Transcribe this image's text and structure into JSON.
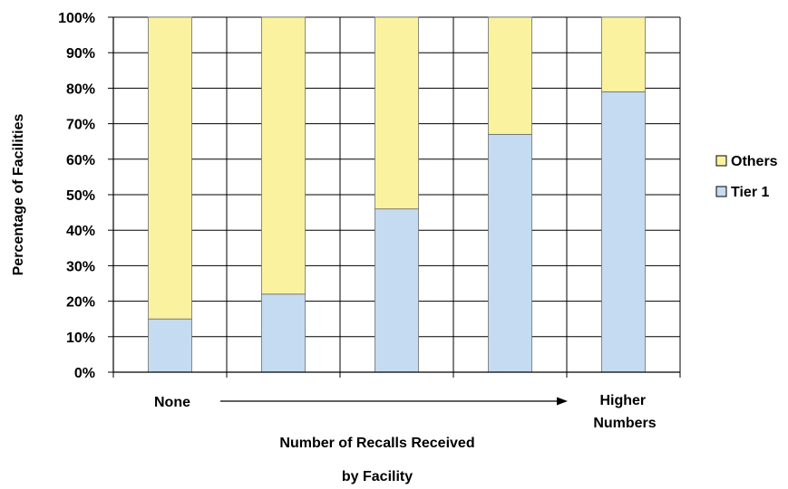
{
  "chart_data": {
    "type": "bar",
    "stacked": true,
    "percent": true,
    "categories": [
      "None",
      "",
      "",
      "",
      "Higher Numbers"
    ],
    "series": [
      {
        "name": "Tier 1",
        "values": [
          15,
          22,
          46,
          67,
          79
        ],
        "color": "#c4dbf1"
      },
      {
        "name": "Others",
        "values": [
          85,
          78,
          54,
          33,
          21
        ],
        "color": "#fbf29f"
      }
    ],
    "ylabel": "Percentage of Facilities",
    "xlabel_lines": [
      "Number of Recalls Received",
      "by Facility"
    ],
    "y_ticks": [
      "0%",
      "10%",
      "20%",
      "30%",
      "40%",
      "50%",
      "60%",
      "70%",
      "80%",
      "90%",
      "100%"
    ],
    "ylim": [
      0,
      100
    ],
    "grid": true,
    "legend": {
      "position": "right",
      "entries": [
        "Others",
        "Tier 1"
      ]
    },
    "x_annotation": {
      "start_label": "None",
      "end_label_lines": [
        "Higher",
        "Numbers"
      ],
      "arrow": "right"
    }
  }
}
